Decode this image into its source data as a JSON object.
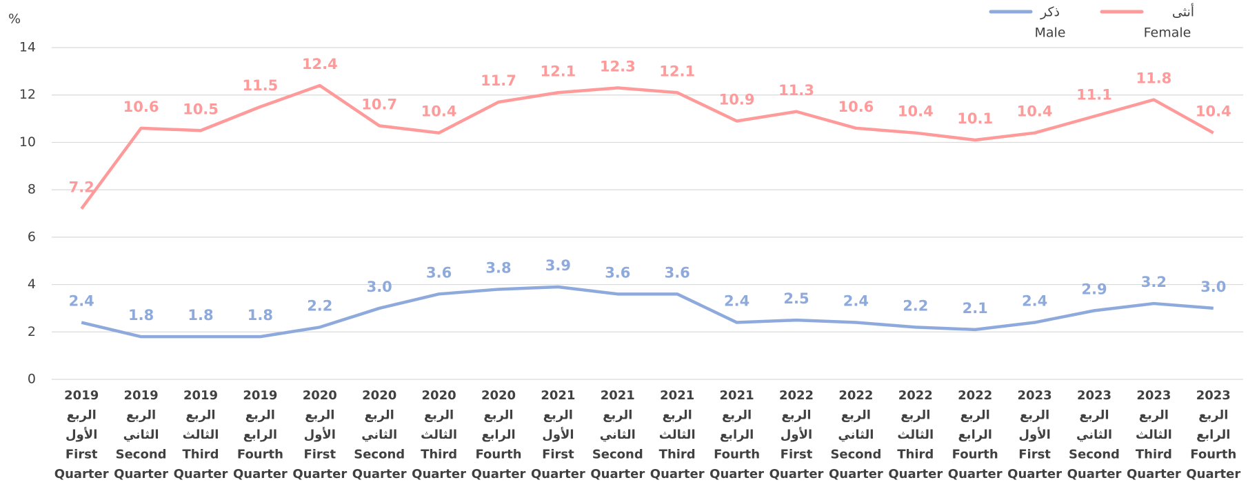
{
  "chart_data": {
    "type": "line",
    "y_label": "%",
    "categories": [
      [
        "2019",
        "الربع",
        "الأول",
        "First",
        "Quarter"
      ],
      [
        "2019",
        "الربع",
        "الثاني",
        "Second",
        "Quarter"
      ],
      [
        "2019",
        "الربع",
        "الثالث",
        "Third",
        "Quarter"
      ],
      [
        "2019",
        "الربع",
        "الرابع",
        "Fourth",
        "Quarter"
      ],
      [
        "2020",
        "الربع",
        "الأول",
        "First",
        "Quarter"
      ],
      [
        "2020",
        "الربع",
        "الثاني",
        "Second",
        "Quarter"
      ],
      [
        "2020",
        "الربع",
        "الثالث",
        "Third",
        "Quarter"
      ],
      [
        "2020",
        "الربع",
        "الرابع",
        "Fourth",
        "Quarter"
      ],
      [
        "2021",
        "الربع",
        "الأول",
        "First",
        "Quarter"
      ],
      [
        "2021",
        "الربع",
        "الثاني",
        "Second",
        "Quarter"
      ],
      [
        "2021",
        "الربع",
        "الثالث",
        "Third",
        "Quarter"
      ],
      [
        "2021",
        "الربع",
        "الرابع",
        "Fourth",
        "Quarter"
      ],
      [
        "2022",
        "الربع",
        "الأول",
        "First",
        "Quarter"
      ],
      [
        "2022",
        "الربع",
        "الثاني",
        "Second",
        "Quarter"
      ],
      [
        "2022",
        "الربع",
        "الثالث",
        "Third",
        "Quarter"
      ],
      [
        "2022",
        "الربع",
        "الرابع",
        "Fourth",
        "Quarter"
      ],
      [
        "2023",
        "الربع",
        "الأول",
        "First",
        "Quarter"
      ],
      [
        "2023",
        "الربع",
        "الثاني",
        "Second",
        "Quarter"
      ],
      [
        "2023",
        "الربع",
        "الثالث",
        "Third",
        "Quarter"
      ],
      [
        "2023",
        "الربع",
        "الرابع",
        "Fourth",
        "Quarter"
      ]
    ],
    "series": [
      {
        "name": "أنثى",
        "name_en": "Female",
        "color": "#ff9a9a",
        "values": [
          7.2,
          10.6,
          10.5,
          11.5,
          12.4,
          10.7,
          10.4,
          11.7,
          12.1,
          12.3,
          12.1,
          10.9,
          11.3,
          10.6,
          10.4,
          10.1,
          10.4,
          11.1,
          11.8,
          10.4
        ],
        "value_labels": [
          "7.2",
          "10.6",
          "10.5",
          "11.5",
          "12.4",
          "10.7",
          "10.4",
          "11.7",
          "12.1",
          "12.3",
          "12.1",
          "10.9",
          "11.3",
          "10.6",
          "10.4",
          "10.1",
          "10.4",
          "11.1",
          "11.8",
          "10.4"
        ]
      },
      {
        "name": "ذكر",
        "name_en": "Male",
        "color": "#8eaadc",
        "values": [
          2.4,
          1.8,
          1.8,
          1.8,
          2.2,
          3.0,
          3.6,
          3.8,
          3.9,
          3.6,
          3.6,
          2.4,
          2.5,
          2.4,
          2.2,
          2.1,
          2.4,
          2.9,
          3.2,
          3.0
        ],
        "value_labels": [
          "2.4",
          "1.8",
          "1.8",
          "1.8",
          "2.2",
          "3.0",
          "3.6",
          "3.8",
          "3.9",
          "3.6",
          "3.6",
          "2.4",
          "2.5",
          "2.4",
          "2.2",
          "2.1",
          "2.4",
          "2.9",
          "3.2",
          "3.0"
        ]
      }
    ],
    "ylim": [
      0,
      14
    ],
    "yticks": [
      0,
      2,
      4,
      6,
      8,
      10,
      12,
      14
    ],
    "grid": true
  }
}
